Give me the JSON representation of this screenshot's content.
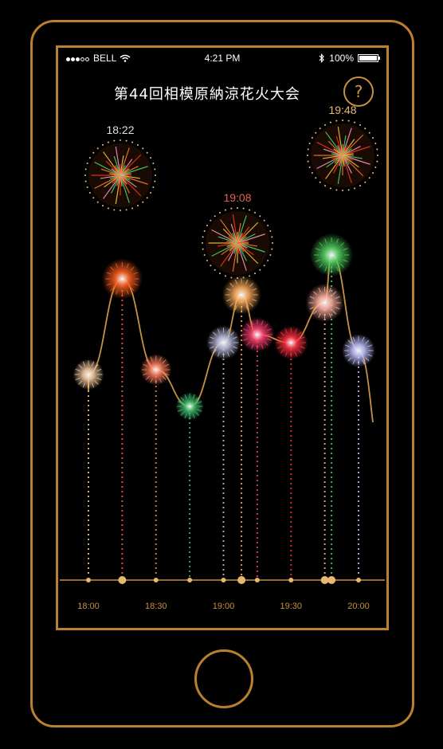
{
  "status_bar": {
    "carrier": "BELL",
    "time": "4:21 PM",
    "battery": "100%",
    "wifi_icon": "wifi-icon",
    "bluetooth_icon": "bluetooth-icon"
  },
  "header": {
    "title": "第44回相模原納涼花火大会",
    "help_label": "?"
  },
  "colors": {
    "gold": "#c8913f",
    "highlight_red": "#e0644a",
    "white": "#ffffff"
  },
  "highlights": [
    {
      "time": "18:22",
      "color": "#dddddd"
    },
    {
      "time": "19:08",
      "color": "#e0644a"
    },
    {
      "time": "19:48",
      "color": "#e8b870"
    }
  ],
  "timeline": {
    "ticks": [
      "18:00",
      "18:30",
      "19:00",
      "19:30",
      "20:00"
    ]
  },
  "chart_data": {
    "type": "line",
    "x_unit": "minutes",
    "x_range": [
      "18:00",
      "20:00"
    ],
    "ticks": [
      "18:00",
      "18:30",
      "19:00",
      "19:30",
      "20:00"
    ],
    "events": [
      {
        "t": "18:00",
        "intensity": 0.25,
        "color": "#f0c8a0"
      },
      {
        "t": "18:15",
        "intensity": 0.85,
        "color": "#ff6020"
      },
      {
        "t": "18:30",
        "intensity": 0.28,
        "color": "#ff8060"
      },
      {
        "t": "18:45",
        "intensity": 0.05,
        "color": "#40c070"
      },
      {
        "t": "19:00",
        "intensity": 0.45,
        "color": "#c0c0e0"
      },
      {
        "t": "19:08",
        "intensity": 0.75,
        "color": "#ffb060"
      },
      {
        "t": "19:15",
        "intensity": 0.5,
        "color": "#ff4070"
      },
      {
        "t": "19:30",
        "intensity": 0.45,
        "color": "#ff3040"
      },
      {
        "t": "19:45",
        "intensity": 0.7,
        "color": "#ffb0a0"
      },
      {
        "t": "19:48",
        "intensity": 1.0,
        "color": "#50d060"
      },
      {
        "t": "20:00",
        "intensity": 0.4,
        "color": "#c0c0ff"
      }
    ]
  }
}
